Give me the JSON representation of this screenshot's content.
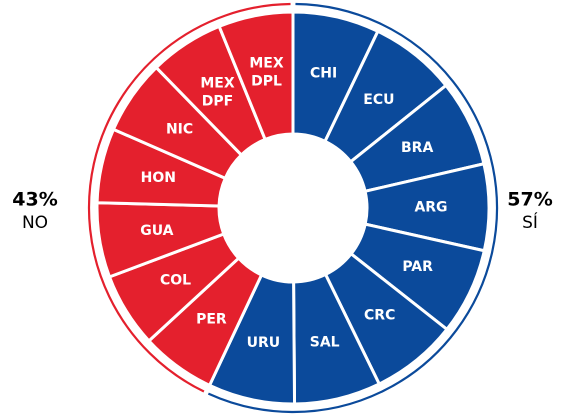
{
  "chart_data": {
    "type": "donut",
    "series": [
      {
        "name": "SÍ",
        "value": 57,
        "value_label": "57%",
        "color": "#0b4a9b",
        "members": [
          [
            "CHI"
          ],
          [
            "ECU"
          ],
          [
            "BRA"
          ],
          [
            "ARG"
          ],
          [
            "PAR"
          ],
          [
            "CRC"
          ],
          [
            "SAL"
          ],
          [
            "URU"
          ]
        ]
      },
      {
        "name": "NO",
        "value": 43,
        "value_label": "43%",
        "color": "#e4202d",
        "members": [
          [
            "PER"
          ],
          [
            "COL"
          ],
          [
            "GUA"
          ],
          [
            "HON"
          ],
          [
            "NIC"
          ],
          [
            "MEX",
            "DPF"
          ],
          [
            "MEX",
            "DPL"
          ]
        ]
      }
    ]
  }
}
